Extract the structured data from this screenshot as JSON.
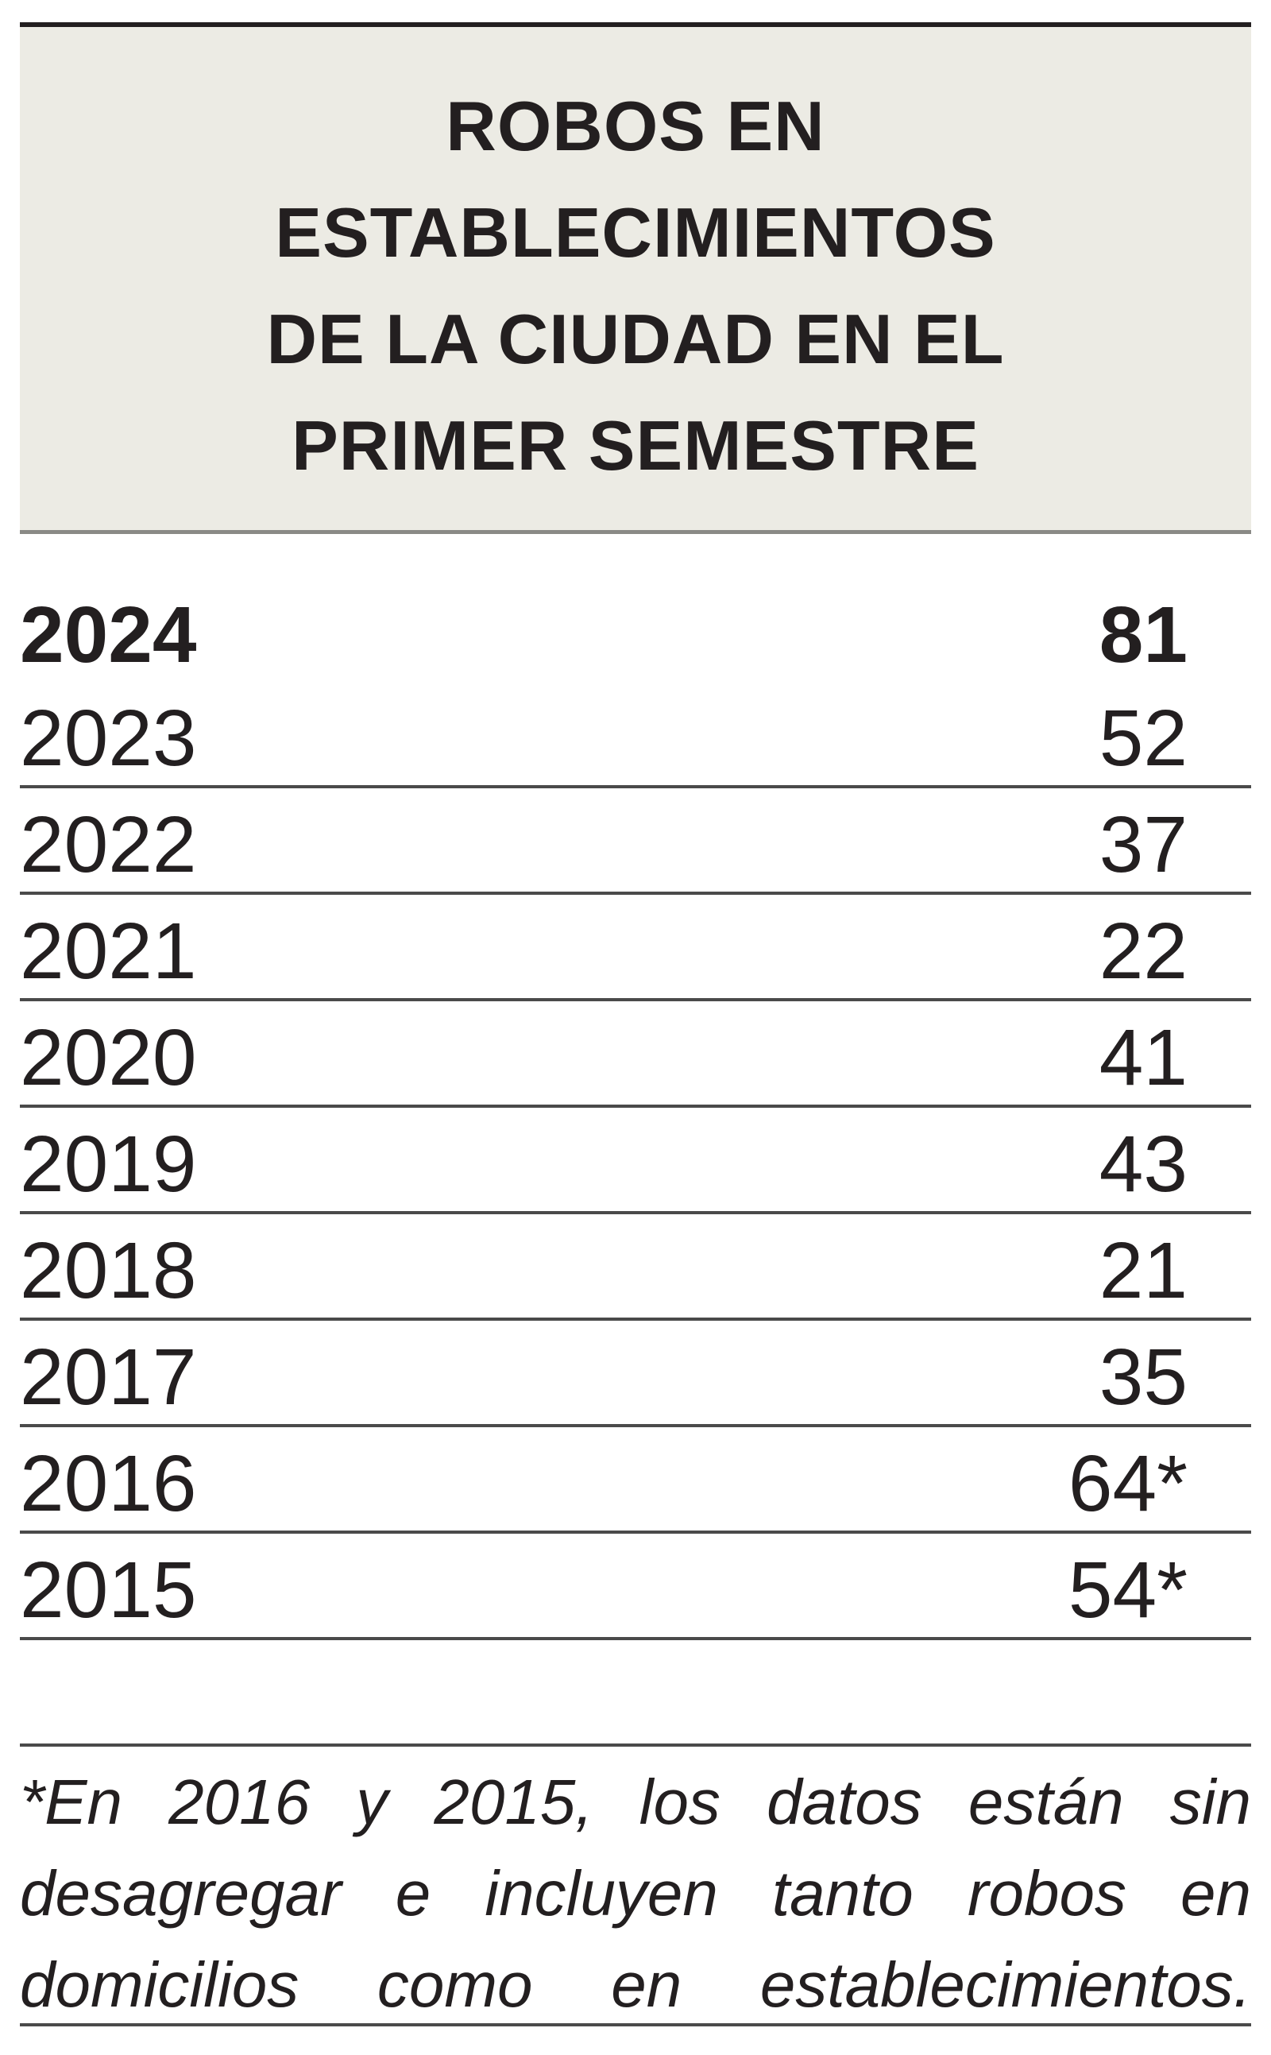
{
  "header": {
    "title_lines": [
      "ROBOS EN",
      "ESTABLECIMIENTOS",
      "DE LA CIUDAD EN EL",
      "PRIMER SEMESTRE"
    ]
  },
  "table": {
    "rows": [
      [
        "2024",
        "81"
      ],
      [
        "2023",
        "52"
      ],
      [
        "2022",
        "37"
      ],
      [
        "2021",
        "22"
      ],
      [
        "2020",
        "41"
      ],
      [
        "2019",
        "43"
      ],
      [
        "2018",
        "21"
      ],
      [
        "2017",
        "35"
      ],
      [
        "2016",
        "64*"
      ],
      [
        "2015",
        "54*"
      ]
    ]
  },
  "footnote": "*En 2016 y 2015, los datos están sin desagregar e incluyen tanto robos en domicilios como en establecimientos."
}
